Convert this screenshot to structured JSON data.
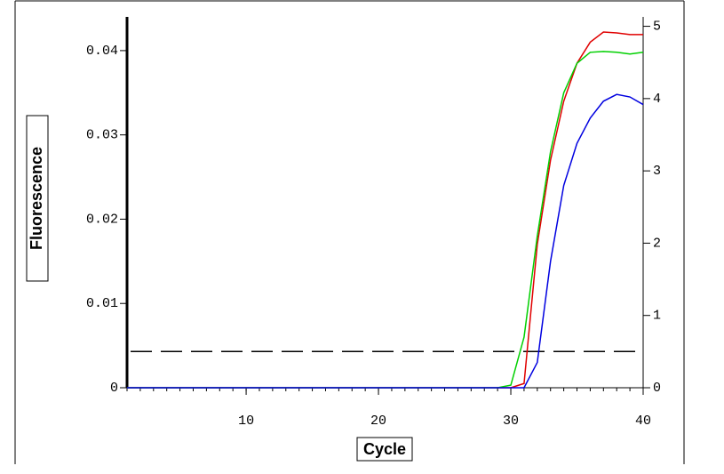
{
  "chart_data": {
    "type": "line",
    "x_label": "Cycle",
    "y_label": "Fluorescence",
    "x": [
      1,
      2,
      3,
      4,
      5,
      6,
      7,
      8,
      9,
      10,
      11,
      12,
      13,
      14,
      15,
      16,
      17,
      18,
      19,
      20,
      21,
      22,
      23,
      24,
      25,
      26,
      27,
      28,
      29,
      30,
      31,
      32,
      33,
      34,
      35,
      36,
      37,
      38,
      39,
      40
    ],
    "series": [
      {
        "color": "#e00000",
        "values": [
          0,
          0,
          0,
          0,
          0,
          0,
          0,
          0,
          0,
          0,
          0,
          0,
          0,
          0,
          0,
          0,
          0,
          0,
          0,
          0,
          0,
          0,
          0,
          0,
          0,
          0,
          0,
          0,
          0,
          0,
          0.0005,
          0.017,
          0.027,
          0.034,
          0.0385,
          0.041,
          0.0422,
          0.0421,
          0.0419,
          0.0419
        ]
      },
      {
        "color": "#00d000",
        "values": [
          0,
          0,
          0,
          0,
          0,
          0,
          0,
          0,
          0,
          0,
          0,
          0,
          0,
          0,
          0,
          0,
          0,
          0,
          0,
          0,
          0,
          0,
          0,
          0,
          0,
          0,
          0,
          0,
          0,
          0.0003,
          0.006,
          0.018,
          0.028,
          0.035,
          0.0385,
          0.0398,
          0.0399,
          0.0398,
          0.0396,
          0.0398
        ]
      },
      {
        "color": "#0000e0",
        "values": [
          0,
          0,
          0,
          0,
          0,
          0,
          0,
          0,
          0,
          0,
          0,
          0,
          0,
          0,
          0,
          0,
          0,
          0,
          0,
          0,
          0,
          0,
          0,
          0,
          0,
          0,
          0,
          0,
          0,
          0,
          0,
          0.003,
          0.015,
          0.024,
          0.029,
          0.032,
          0.034,
          0.0348,
          0.0345,
          0.0336
        ]
      }
    ],
    "threshold": 0.0043,
    "xlim": [
      1,
      40
    ],
    "xticks": [
      10,
      20,
      30,
      40
    ],
    "ylim": [
      0,
      0.044
    ],
    "yticks": [
      0,
      0.01,
      0.02,
      0.03,
      0.04
    ],
    "y2lim": [
      0,
      5.13
    ],
    "y2ticks": [
      0,
      1,
      2,
      3,
      4,
      5
    ]
  }
}
